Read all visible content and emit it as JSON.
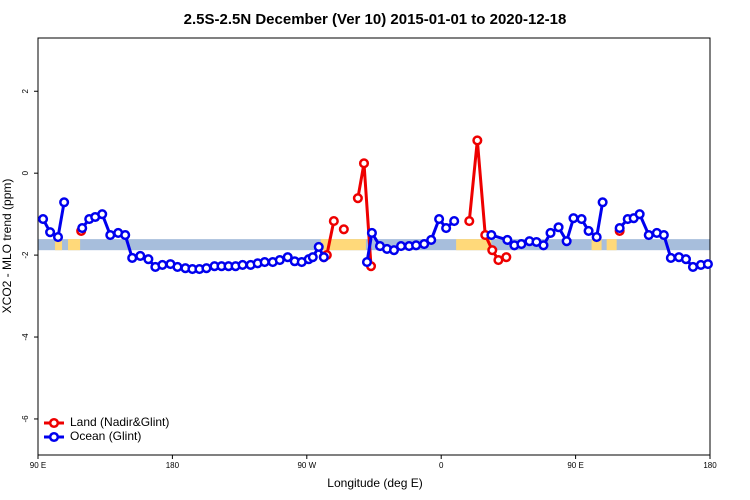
{
  "chart_data": {
    "type": "line",
    "title": "2.5S-2.5N December (Ver 10)   2015-01-01 to 2020-12-18",
    "xlabel": "Longitude (deg E)",
    "ylabel": "XCO2 - MLO trend (ppm)",
    "xlim": [
      90,
      540
    ],
    "ylim": [
      -6.88,
      3.3
    ],
    "xticks": [
      {
        "value": 90,
        "label": "90 E"
      },
      180,
      {
        "value": 270,
        "label": "90 W"
      },
      {
        "value": 360,
        "label": "0"
      },
      {
        "value": 450,
        "label": "90 E"
      },
      {
        "value": 540,
        "label": "180"
      }
    ],
    "yticks": [
      -6,
      -4,
      -2,
      0,
      2
    ],
    "band": [
      -1.88,
      -1.61
    ],
    "band_color": "#a7bedc",
    "land_color": "#ffd97a",
    "land_spans": [
      [
        101.4,
        106.1
      ],
      [
        110.1,
        118.2
      ],
      [
        279.4,
        309.6
      ],
      [
        370.0,
        393.6
      ],
      [
        460.7,
        467.4
      ],
      [
        470.8,
        477.5
      ]
    ],
    "legend": "lower left",
    "series": [
      {
        "name": "Land (Nadir&Glint)",
        "color": "#ee0000",
        "x": [
          118.9,
          null,
          281.4,
          283.4,
          288.1,
          null,
          294.8,
          null,
          304.2,
          308.3,
          313.0,
          null,
          378.8,
          384.2,
          389.5,
          394.2,
          398.3,
          403.6,
          null,
          479.5
        ],
        "values": [
          -1.41,
          null,
          -2.05,
          -2.0,
          -1.17,
          null,
          -1.37,
          null,
          -0.61,
          0.24,
          -2.27,
          null,
          -1.17,
          0.8,
          -1.51,
          -1.88,
          -2.12,
          -2.05,
          null,
          -1.41
        ]
      },
      {
        "name": "Ocean (Glint)",
        "color": "#0000ee",
        "x": [
          93.4,
          98.1,
          103.4,
          107.5,
          null,
          119.6,
          124.3,
          128.3,
          133.0,
          138.4,
          143.7,
          148.4,
          153.1,
          158.5,
          163.9,
          168.6,
          173.3,
          178.7,
          183.4,
          188.7,
          193.4,
          198.1,
          202.8,
          208.2,
          212.9,
          217.6,
          222.3,
          227.0,
          232.4,
          237.1,
          241.8,
          247.2,
          251.9,
          257.2,
          261.9,
          266.6,
          271.3,
          274.0,
          278.0,
          281.4,
          null,
          310.3,
          313.6,
          319.0,
          323.7,
          328.4,
          333.1,
          338.5,
          343.2,
          348.6,
          353.3,
          358.6,
          363.3,
          368.7,
          null,
          393.6,
          404.3,
          409.0,
          413.7,
          419.1,
          423.8,
          428.5,
          433.2,
          438.6,
          444.0,
          448.6,
          454.0,
          458.7,
          464.1,
          468.1,
          null,
          479.5,
          484.9,
          488.9,
          492.9,
          499.0,
          504.4,
          509.1,
          513.8,
          519.2,
          523.9,
          528.6,
          533.9,
          538.6
        ],
        "values": [
          -1.12,
          -1.44,
          -1.56,
          -0.71,
          null,
          -1.34,
          -1.12,
          -1.07,
          -1.0,
          -1.51,
          -1.46,
          -1.51,
          -2.07,
          -2.02,
          -2.1,
          -2.29,
          -2.24,
          -2.22,
          -2.29,
          -2.32,
          -2.34,
          -2.34,
          -2.32,
          -2.27,
          -2.27,
          -2.27,
          -2.27,
          -2.24,
          -2.24,
          -2.2,
          -2.17,
          -2.17,
          -2.12,
          -2.05,
          -2.15,
          -2.17,
          -2.1,
          -2.05,
          -1.8,
          -2.05,
          null,
          -2.17,
          -1.46,
          -1.78,
          -1.85,
          -1.88,
          -1.78,
          -1.78,
          -1.76,
          -1.73,
          -1.63,
          -1.12,
          -1.34,
          -1.17,
          null,
          -1.51,
          -1.63,
          -1.76,
          -1.73,
          -1.66,
          -1.68,
          -1.76,
          -1.46,
          -1.32,
          -1.66,
          -1.1,
          -1.12,
          -1.41,
          -1.56,
          -0.71,
          null,
          -1.34,
          -1.12,
          -1.1,
          -1.0,
          -1.51,
          -1.46,
          -1.51,
          -2.07,
          -2.05,
          -2.1,
          -2.29,
          -2.24,
          -2.22
        ]
      }
    ]
  }
}
